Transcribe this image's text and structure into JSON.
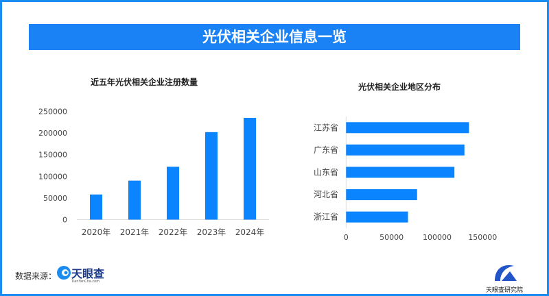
{
  "banner_title": "光伏相关企业信息一览",
  "chart_data": [
    {
      "type": "bar",
      "title": "近五年光伏相关企业注册数量",
      "categories": [
        "2020年",
        "2021年",
        "2022年",
        "2023年",
        "2024年"
      ],
      "values": [
        58000,
        90000,
        122000,
        202000,
        235000
      ],
      "yticks": [
        "0",
        "50000",
        "100000",
        "150000",
        "200000",
        "250000"
      ],
      "ylim": [
        0,
        250000
      ],
      "color": "#0a84ff"
    },
    {
      "type": "bar",
      "orientation": "horizontal",
      "title": "光伏相关企业地区分布",
      "categories": [
        "江苏省",
        "广东省",
        "山东省",
        "河北省",
        "浙江省"
      ],
      "values": [
        135000,
        130000,
        119000,
        78000,
        68000
      ],
      "xticks": [
        "0",
        "50000",
        "100000",
        "150000"
      ],
      "xlim": [
        0,
        150000
      ],
      "color": "#0a84ff"
    }
  ],
  "footer": {
    "source_label": "数据来源：",
    "source_logo": "天眼查",
    "source_logo_sub": "TianYanCha.com",
    "institute": "天眼查研究院"
  }
}
